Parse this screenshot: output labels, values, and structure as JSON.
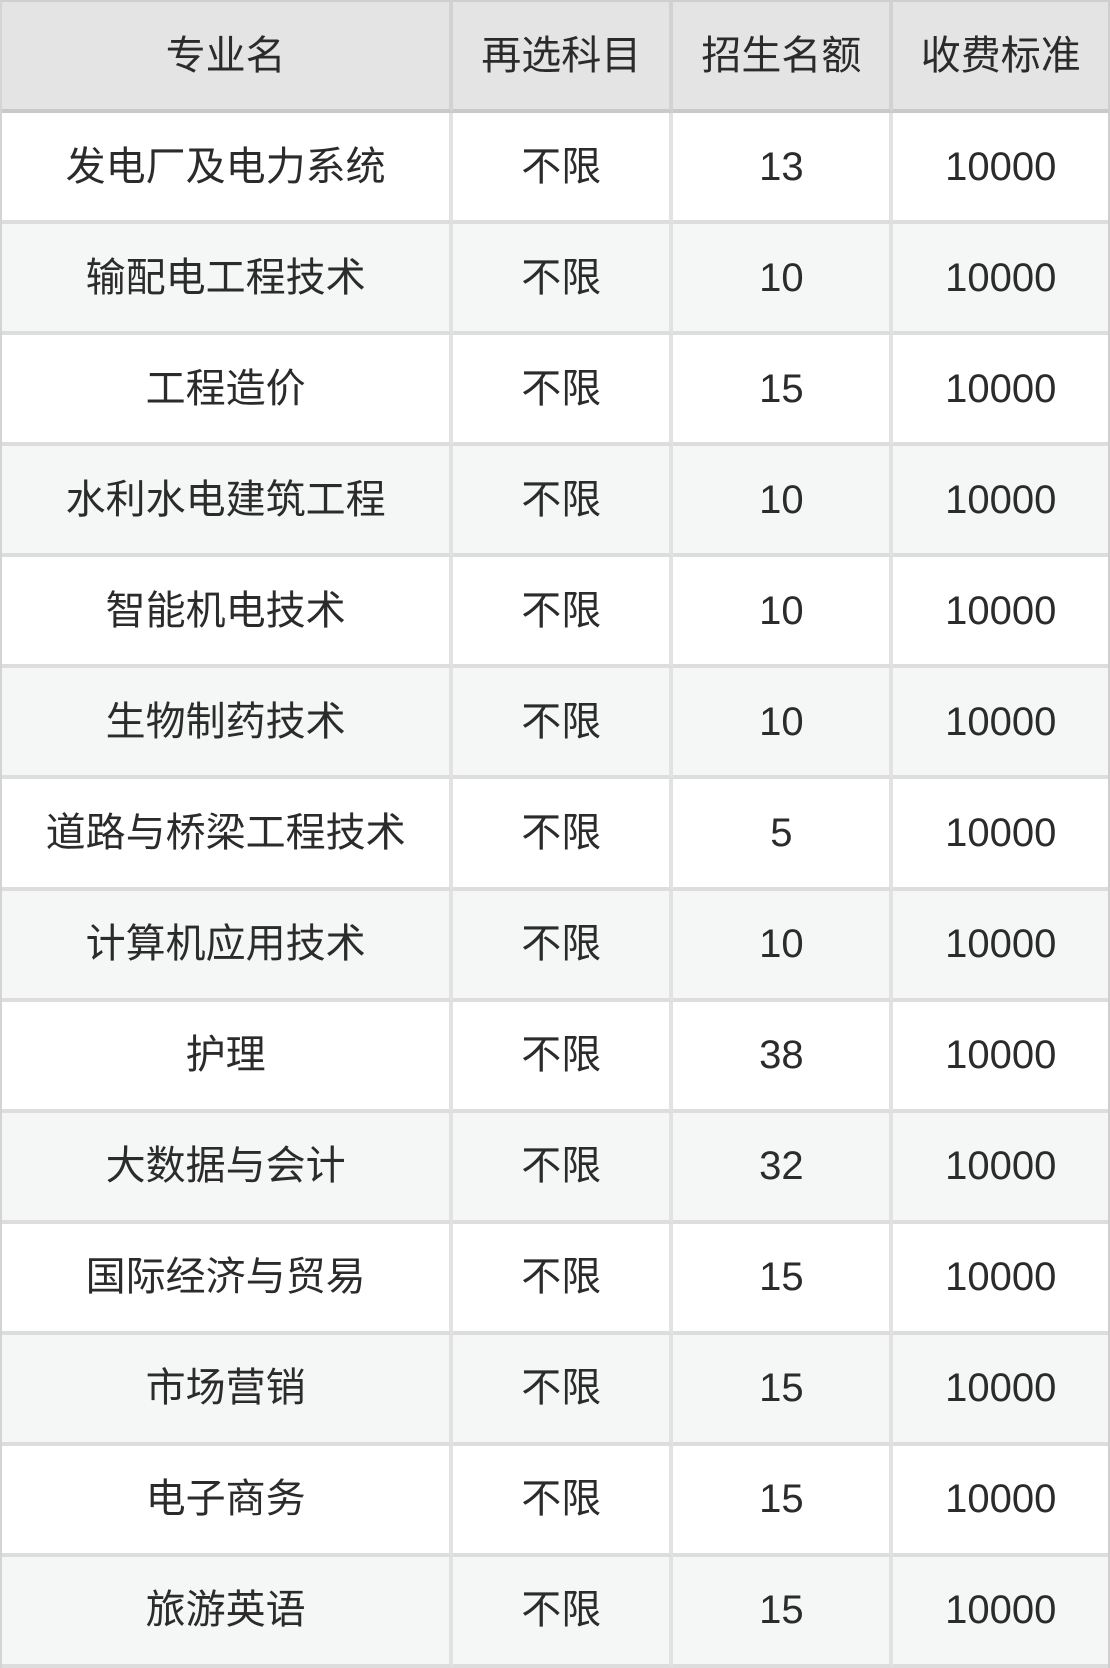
{
  "table": {
    "columns": [
      "专业名",
      "再选科目",
      "招生名额",
      "收费标准"
    ],
    "rows": [
      [
        "发电厂及电力系统",
        "不限",
        "13",
        "10000"
      ],
      [
        "输配电工程技术",
        "不限",
        "10",
        "10000"
      ],
      [
        "工程造价",
        "不限",
        "15",
        "10000"
      ],
      [
        "水利水电建筑工程",
        "不限",
        "10",
        "10000"
      ],
      [
        "智能机电技术",
        "不限",
        "10",
        "10000"
      ],
      [
        "生物制药技术",
        "不限",
        "10",
        "10000"
      ],
      [
        "道路与桥梁工程技术",
        "不限",
        "5",
        "10000"
      ],
      [
        "计算机应用技术",
        "不限",
        "10",
        "10000"
      ],
      [
        "护理",
        "不限",
        "38",
        "10000"
      ],
      [
        "大数据与会计",
        "不限",
        "32",
        "10000"
      ],
      [
        "国际经济与贸易",
        "不限",
        "15",
        "10000"
      ],
      [
        "市场营销",
        "不限",
        "15",
        "10000"
      ],
      [
        "电子商务",
        "不限",
        "15",
        "10000"
      ],
      [
        "旅游英语",
        "不限",
        "15",
        "10000"
      ]
    ]
  },
  "colors": {
    "header_bg": "#e4e4e4",
    "row_bg": "#ffffff",
    "row_alt_bg": "#f5f6f6",
    "header_border": "#c9c9c9",
    "body_border": "#dddddd",
    "text": "#2b2b2b"
  }
}
